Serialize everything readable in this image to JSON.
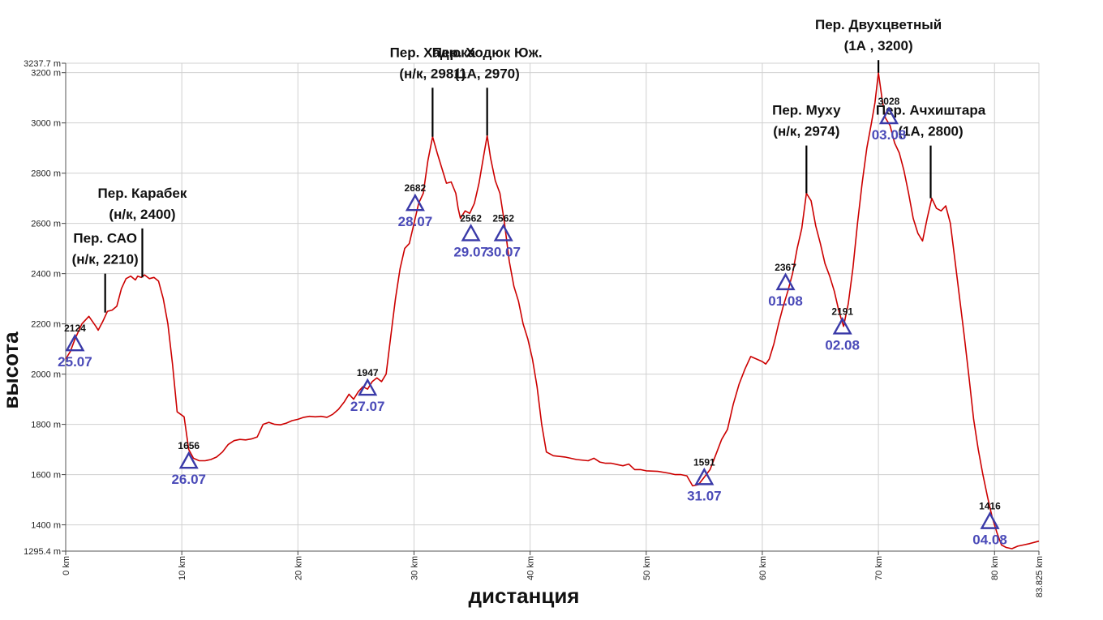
{
  "chart_data": {
    "type": "line",
    "title": "",
    "xlabel": "дистанция",
    "ylabel": "высота",
    "xlim": [
      0,
      83.825
    ],
    "ylim": [
      1295.4,
      3237.7
    ],
    "grid": true,
    "colors": {
      "line": "#cc0000",
      "marker": "#3a3aa8",
      "date": "#4a4ab8",
      "grid": "#d0d0d0"
    },
    "y_ticks": [
      {
        "value": 3237.7,
        "label": "3237.7 m"
      },
      {
        "value": 3200,
        "label": "3200 m"
      },
      {
        "value": 3000,
        "label": "3000 m"
      },
      {
        "value": 2800,
        "label": "2800 m"
      },
      {
        "value": 2600,
        "label": "2600 m"
      },
      {
        "value": 2400,
        "label": "2400 m"
      },
      {
        "value": 2200,
        "label": "2200 m"
      },
      {
        "value": 2000,
        "label": "2000 m"
      },
      {
        "value": 1800,
        "label": "1800 m"
      },
      {
        "value": 1600,
        "label": "1600 m"
      },
      {
        "value": 1400,
        "label": "1400 m"
      },
      {
        "value": 1295.4,
        "label": "1295.4 m"
      }
    ],
    "x_ticks": [
      {
        "value": 0,
        "label": "0 km"
      },
      {
        "value": 10,
        "label": "10 km"
      },
      {
        "value": 20,
        "label": "20 km"
      },
      {
        "value": 30,
        "label": "30 km"
      },
      {
        "value": 40,
        "label": "40 km"
      },
      {
        "value": 50,
        "label": "50 km"
      },
      {
        "value": 60,
        "label": "60 km"
      },
      {
        "value": 70,
        "label": "70 km"
      },
      {
        "value": 80,
        "label": "80 km"
      },
      {
        "value": 83.825,
        "label": "83.825 km"
      }
    ],
    "series": [
      {
        "points": [
          [
            0,
            2060
          ],
          [
            0.4,
            2090
          ],
          [
            0.8,
            2140
          ],
          [
            1.4,
            2200
          ],
          [
            2.0,
            2230
          ],
          [
            2.6,
            2190
          ],
          [
            2.8,
            2175
          ],
          [
            3.2,
            2210
          ],
          [
            3.6,
            2250
          ],
          [
            4.0,
            2255
          ],
          [
            4.4,
            2270
          ],
          [
            4.8,
            2340
          ],
          [
            5.2,
            2380
          ],
          [
            5.6,
            2390
          ],
          [
            6.0,
            2375
          ],
          [
            6.2,
            2390
          ],
          [
            6.5,
            2385
          ],
          [
            6.8,
            2395
          ],
          [
            7.2,
            2380
          ],
          [
            7.6,
            2385
          ],
          [
            8.0,
            2370
          ],
          [
            8.4,
            2300
          ],
          [
            8.8,
            2200
          ],
          [
            9.2,
            2040
          ],
          [
            9.6,
            1850
          ],
          [
            10.2,
            1830
          ],
          [
            10.6,
            1700
          ],
          [
            11.0,
            1665
          ],
          [
            11.5,
            1655
          ],
          [
            12.0,
            1655
          ],
          [
            12.5,
            1660
          ],
          [
            13.0,
            1670
          ],
          [
            13.5,
            1690
          ],
          [
            14.0,
            1720
          ],
          [
            14.5,
            1735
          ],
          [
            15.0,
            1740
          ],
          [
            15.5,
            1738
          ],
          [
            16.0,
            1742
          ],
          [
            16.5,
            1750
          ],
          [
            17.0,
            1800
          ],
          [
            17.5,
            1808
          ],
          [
            18.0,
            1800
          ],
          [
            18.5,
            1798
          ],
          [
            19.0,
            1805
          ],
          [
            19.5,
            1815
          ],
          [
            20.0,
            1820
          ],
          [
            20.5,
            1828
          ],
          [
            21.0,
            1832
          ],
          [
            21.5,
            1830
          ],
          [
            22.0,
            1832
          ],
          [
            22.5,
            1828
          ],
          [
            23.0,
            1840
          ],
          [
            23.5,
            1860
          ],
          [
            24.0,
            1890
          ],
          [
            24.4,
            1920
          ],
          [
            24.8,
            1900
          ],
          [
            25.2,
            1930
          ],
          [
            25.6,
            1950
          ],
          [
            26.0,
            1940
          ],
          [
            26.4,
            1970
          ],
          [
            26.8,
            1985
          ],
          [
            27.2,
            1970
          ],
          [
            27.6,
            2000
          ],
          [
            28.0,
            2150
          ],
          [
            28.4,
            2300
          ],
          [
            28.8,
            2420
          ],
          [
            29.2,
            2500
          ],
          [
            29.6,
            2520
          ],
          [
            30.0,
            2600
          ],
          [
            30.4,
            2680
          ],
          [
            30.8,
            2720
          ],
          [
            31.2,
            2850
          ],
          [
            31.6,
            2945
          ],
          [
            32.0,
            2880
          ],
          [
            32.4,
            2820
          ],
          [
            32.8,
            2760
          ],
          [
            33.2,
            2765
          ],
          [
            33.6,
            2720
          ],
          [
            33.8,
            2660
          ],
          [
            34.0,
            2620
          ],
          [
            34.4,
            2650
          ],
          [
            34.8,
            2640
          ],
          [
            35.2,
            2680
          ],
          [
            35.6,
            2760
          ],
          [
            36.0,
            2870
          ],
          [
            36.3,
            2950
          ],
          [
            36.6,
            2860
          ],
          [
            37.0,
            2770
          ],
          [
            37.4,
            2720
          ],
          [
            37.8,
            2600
          ],
          [
            38.2,
            2450
          ],
          [
            38.6,
            2350
          ],
          [
            39.0,
            2290
          ],
          [
            39.4,
            2200
          ],
          [
            39.8,
            2140
          ],
          [
            40.2,
            2060
          ],
          [
            40.6,
            1950
          ],
          [
            41.0,
            1800
          ],
          [
            41.4,
            1690
          ],
          [
            42.0,
            1675
          ],
          [
            43.0,
            1670
          ],
          [
            44.0,
            1660
          ],
          [
            45.0,
            1655
          ],
          [
            45.5,
            1665
          ],
          [
            46.0,
            1650
          ],
          [
            46.5,
            1645
          ],
          [
            47.0,
            1645
          ],
          [
            47.5,
            1640
          ],
          [
            48.0,
            1635
          ],
          [
            48.5,
            1642
          ],
          [
            49.0,
            1620
          ],
          [
            49.5,
            1620
          ],
          [
            50.0,
            1615
          ],
          [
            51.0,
            1613
          ],
          [
            52.0,
            1605
          ],
          [
            52.5,
            1600
          ],
          [
            53.0,
            1600
          ],
          [
            53.5,
            1595
          ],
          [
            54.0,
            1555
          ],
          [
            54.5,
            1560
          ],
          [
            55.0,
            1590
          ],
          [
            55.5,
            1620
          ],
          [
            56.0,
            1680
          ],
          [
            56.5,
            1740
          ],
          [
            57.0,
            1780
          ],
          [
            57.5,
            1880
          ],
          [
            58.0,
            1960
          ],
          [
            58.5,
            2020
          ],
          [
            59.0,
            2070
          ],
          [
            59.5,
            2060
          ],
          [
            60.0,
            2050
          ],
          [
            60.3,
            2040
          ],
          [
            60.6,
            2060
          ],
          [
            61.0,
            2120
          ],
          [
            61.4,
            2200
          ],
          [
            61.8,
            2270
          ],
          [
            62.2,
            2330
          ],
          [
            62.6,
            2400
          ],
          [
            63.0,
            2500
          ],
          [
            63.4,
            2580
          ],
          [
            63.8,
            2720
          ],
          [
            64.2,
            2690
          ],
          [
            64.6,
            2590
          ],
          [
            65.0,
            2520
          ],
          [
            65.4,
            2440
          ],
          [
            65.8,
            2390
          ],
          [
            66.2,
            2330
          ],
          [
            66.6,
            2250
          ],
          [
            67.0,
            2190
          ],
          [
            67.4,
            2280
          ],
          [
            67.8,
            2420
          ],
          [
            68.2,
            2600
          ],
          [
            68.6,
            2760
          ],
          [
            69.0,
            2900
          ],
          [
            69.4,
            3000
          ],
          [
            69.7,
            3080
          ],
          [
            70.0,
            3200
          ],
          [
            70.3,
            3100
          ],
          [
            70.6,
            3020
          ],
          [
            71.0,
            2990
          ],
          [
            71.4,
            2920
          ],
          [
            71.8,
            2880
          ],
          [
            72.2,
            2810
          ],
          [
            72.6,
            2720
          ],
          [
            73.0,
            2620
          ],
          [
            73.4,
            2560
          ],
          [
            73.8,
            2530
          ],
          [
            74.2,
            2620
          ],
          [
            74.6,
            2700
          ],
          [
            75.0,
            2660
          ],
          [
            75.4,
            2650
          ],
          [
            75.8,
            2670
          ],
          [
            76.2,
            2600
          ],
          [
            76.6,
            2450
          ],
          [
            77.0,
            2300
          ],
          [
            77.4,
            2150
          ],
          [
            77.8,
            1990
          ],
          [
            78.2,
            1820
          ],
          [
            78.6,
            1700
          ],
          [
            79.0,
            1600
          ],
          [
            79.4,
            1510
          ],
          [
            79.8,
            1430
          ],
          [
            80.2,
            1370
          ],
          [
            80.6,
            1320
          ],
          [
            81.0,
            1310
          ],
          [
            81.5,
            1305
          ],
          [
            82.0,
            1315
          ],
          [
            82.5,
            1320
          ],
          [
            83.0,
            1325
          ],
          [
            83.825,
            1335
          ]
        ]
      }
    ],
    "passes": [
      {
        "x": 3.4,
        "line_top": 2400,
        "line_bottom": 2245,
        "lines": [
          "Пер. САО",
          "(н/к, 2210)"
        ]
      },
      {
        "x": 6.6,
        "line_top": 2580,
        "line_bottom": 2385,
        "lines": [
          "Пер. Карабек",
          "(н/к, 2400)"
        ]
      },
      {
        "x": 31.6,
        "line_top": 3140,
        "line_bottom": 2945,
        "lines": [
          "Пер. Хадюка",
          "(н/к, 2981)"
        ]
      },
      {
        "x": 36.3,
        "line_top": 3140,
        "line_bottom": 2950,
        "lines": [
          "Пер. Ходюк Юж.",
          "(1А, 2970)"
        ]
      },
      {
        "x": 63.8,
        "line_top": 2910,
        "line_bottom": 2720,
        "lines": [
          "Пер. Муху",
          "(н/к, 2974)"
        ]
      },
      {
        "x": 70.0,
        "line_top": 3250,
        "line_bottom": 3200,
        "lines": [
          "Пер. Двухцветный",
          "(1А  , 3200)"
        ]
      },
      {
        "x": 74.5,
        "line_top": 2910,
        "line_bottom": 2700,
        "lines": [
          "Пер. Ачхиштара",
          "(1А, 2800)"
        ]
      }
    ],
    "camps": [
      {
        "x": 0.8,
        "y": 2124,
        "label": "2124",
        "date": "25.07"
      },
      {
        "x": 10.6,
        "y": 1656,
        "label": "1656",
        "date": "26.07"
      },
      {
        "x": 26.0,
        "y": 1947,
        "label": "1947",
        "date": "27.07"
      },
      {
        "x": 30.1,
        "y": 2682,
        "label": "2682",
        "date": "28.07"
      },
      {
        "x": 34.9,
        "y": 2562,
        "label": "2562",
        "date": "29.07"
      },
      {
        "x": 37.7,
        "y": 2562,
        "label": "2562",
        "date": "30.07"
      },
      {
        "x": 55.0,
        "y": 1591,
        "label": "1591",
        "date": "31.07"
      },
      {
        "x": 62.0,
        "y": 2367,
        "label": "2367",
        "date": "01.08"
      },
      {
        "x": 66.9,
        "y": 2191,
        "label": "2191",
        "date": "02.08"
      },
      {
        "x": 70.9,
        "y": 3028,
        "label": "3028",
        "date": "03.08"
      },
      {
        "x": 79.6,
        "y": 1416,
        "label": "1416",
        "date": "04.08"
      }
    ]
  }
}
